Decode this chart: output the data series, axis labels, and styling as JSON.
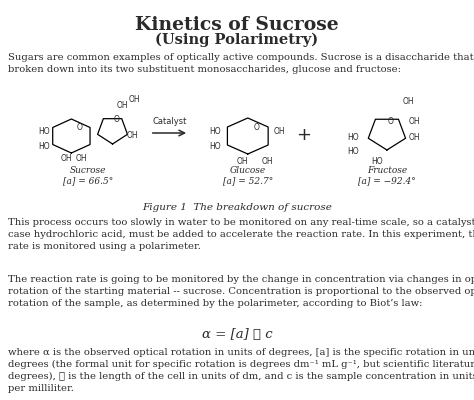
{
  "title": "Kinetics of Sucrose",
  "subtitle": "(Using Polarimetry)",
  "bg_color": "#ffffff",
  "text_color": "#2a2a2a",
  "para1": "Sugars are common examples of optically active compounds. Sucrose is a disaccharide that can be\nbroken down into its two substituent monosaccharides, glucose and fructose:",
  "figure_caption": "Figure 1  The breakdown of sucrose",
  "para2": "This process occurs too slowly in water to be monitored on any real-time scale, so a catalyst, in this\ncase hydrochloric acid, must be added to accelerate the reaction rate. In this experiment, the reaction\nrate is monitored using a polarimeter.",
  "para3": "The reaction rate is going to be monitored by the change in concentration via changes in optical\nrotation of the starting material -- sucrose. Concentration is proportional to the observed optical\nrotation of the sample, as determined by the polarimeter, according to Biot’s law:",
  "equation": "α = [a] ℓ c",
  "para4": "where α is the observed optical rotation in units of degrees, [a] is the specific rotation in units of\ndegrees (the formal unit for specific rotation is degrees dm⁻¹ mL g⁻¹, but scientific literature uses just\ndegrees), ℓ is the length of the cell in units of dm, and c is the sample concentration in units of grams\nper milliliter.",
  "sucrose_label": "Sucrose",
  "sucrose_rot": "[a] = 66.5°",
  "glucose_label": "Glucose",
  "glucose_rot": "[a] = 52.7°",
  "fructose_label": "Fructose",
  "fructose_rot": "[a] = −92.4°",
  "catalyst_text": "Catalyst"
}
